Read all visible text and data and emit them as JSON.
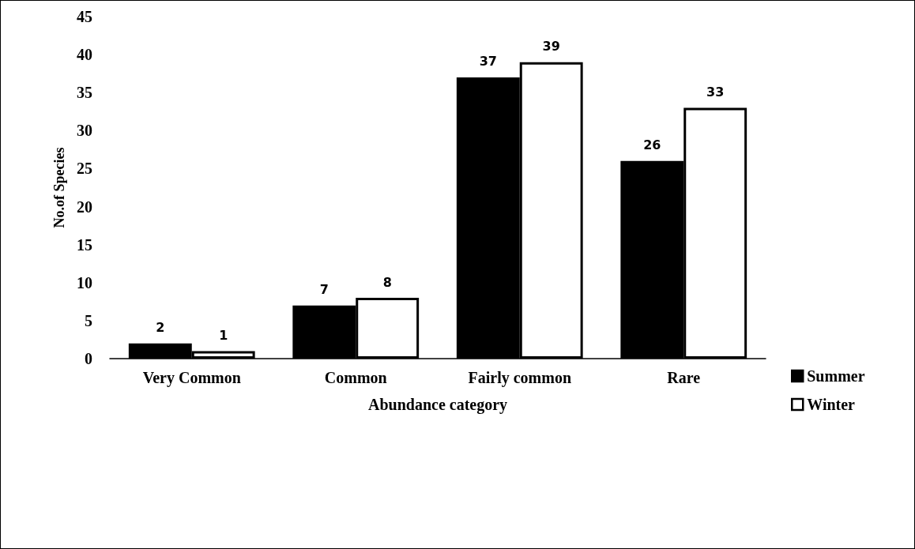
{
  "chart_data": {
    "type": "bar",
    "xlabel": "Abundance category",
    "ylabel": "No.of Species",
    "categories": [
      "Very Common",
      "Common",
      "Fairly common",
      "Rare"
    ],
    "series": [
      {
        "name": "Summer",
        "color": "#000000",
        "values": [
          2,
          7,
          37,
          26
        ]
      },
      {
        "name": "Winter",
        "color": "#ffffff",
        "values": [
          1,
          8,
          39,
          33
        ]
      }
    ],
    "ylim": [
      0,
      45
    ],
    "yticks": [
      0,
      5,
      10,
      15,
      20,
      25,
      30,
      35,
      40,
      45
    ],
    "grid": false,
    "legend": "right",
    "data_labels": true
  }
}
